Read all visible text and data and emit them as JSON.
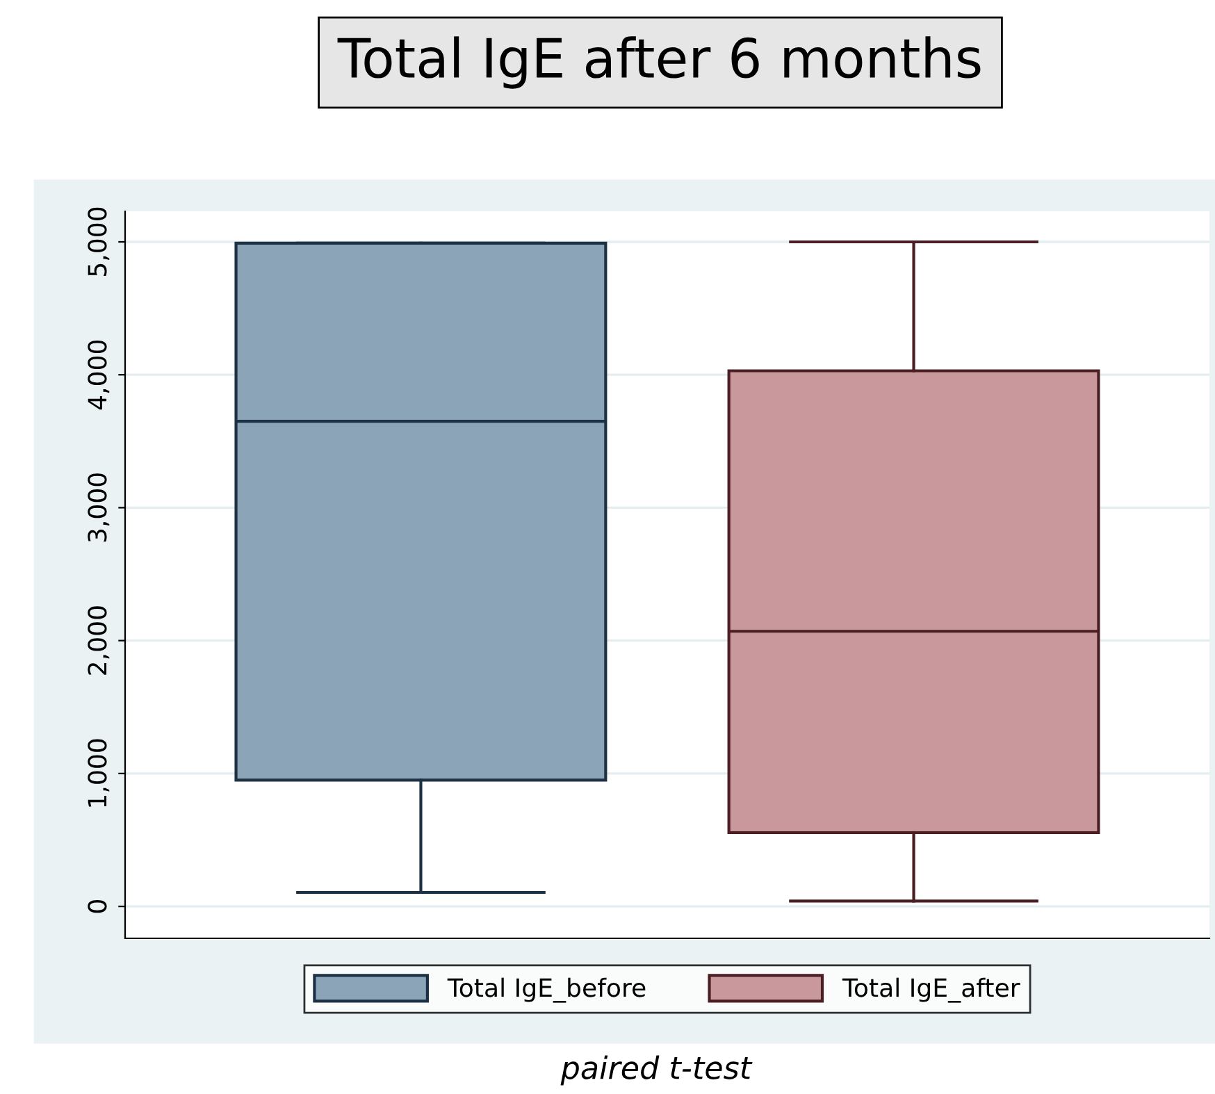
{
  "chart_data": {
    "type": "box",
    "title": "Total IgE after 6 months",
    "categories": [
      null,
      null
    ],
    "series": [
      {
        "name": "Total IgE_before",
        "color": "#8ca4b8",
        "boxes": [
          {
            "low": 105,
            "q1": 950,
            "median": 3650,
            "q3": 4990,
            "high": 4990
          },
          null
        ]
      },
      {
        "name": "Total IgE_after",
        "color": "#c8989c",
        "boxes": [
          null,
          {
            "low": 40,
            "q1": 555,
            "median": 2070,
            "q3": 4030,
            "high": 5000
          }
        ]
      }
    ],
    "ylim": [
      -240,
      5230
    ],
    "yticks": [
      {
        "value": 0,
        "label": "0"
      },
      {
        "value": 1000,
        "label": "1,000"
      },
      {
        "value": 2000,
        "label": "2,000"
      },
      {
        "value": 3000,
        "label": "3,000"
      },
      {
        "value": 4000,
        "label": "4,000"
      },
      {
        "value": 5000,
        "label": "5,000"
      }
    ],
    "grid": "y",
    "legend": "bottom",
    "annotations": [
      "paired t-test"
    ]
  }
}
